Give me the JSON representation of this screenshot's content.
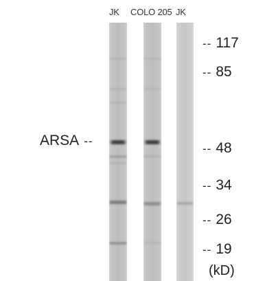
{
  "lanes": [
    "JK",
    "COLO 205",
    "JK"
  ],
  "protein_label": "ARSA",
  "marker_dash": "--",
  "markers": [
    {
      "kd": "117"
    },
    {
      "kd": "85"
    },
    {
      "kd": "48"
    },
    {
      "kd": "34"
    },
    {
      "kd": "26"
    },
    {
      "kd": "19"
    }
  ],
  "unit": "(kD)"
}
